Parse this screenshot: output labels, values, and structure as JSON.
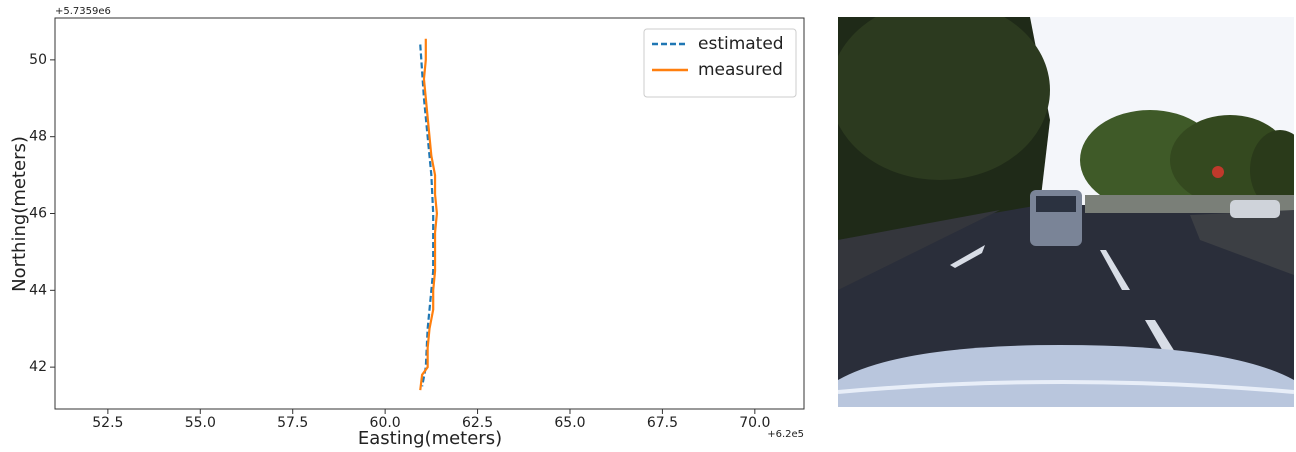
{
  "chart_data": {
    "type": "line",
    "xlabel": "Easting(meters)",
    "ylabel": "Northing(meters)",
    "x_offset": "+6.2e5",
    "y_offset": "+5.7359e6",
    "xlim": [
      51.07,
      71.33
    ],
    "ylim": [
      40.91,
      51.09
    ],
    "xticks": [
      52.5,
      {
        "value": 55,
        "label": "55.0"
      },
      57.5,
      {
        "value": 60,
        "label": "60.0"
      },
      62.5,
      {
        "value": 65,
        "label": "65.0"
      },
      67.5,
      {
        "value": 70,
        "label": "70.0"
      }
    ],
    "yticks": [
      42,
      44,
      46,
      48,
      50
    ],
    "legend": "upper right",
    "series": [
      {
        "name": "estimated",
        "color": "#1f77b4",
        "linestyle": "dashed",
        "x": [
          60.95,
          61.0,
          61.05,
          61.1,
          61.15,
          61.2,
          61.25,
          61.3,
          61.3,
          61.3,
          61.25,
          61.2,
          61.15,
          61.1,
          61.0
        ],
        "values": [
          50.4,
          49.7,
          49.0,
          48.5,
          48.0,
          47.5,
          47.0,
          46.0,
          45.0,
          44.5,
          44.0,
          43.5,
          43.0,
          42.0,
          41.5
        ]
      },
      {
        "name": "measured",
        "color": "#ff7f0e",
        "linestyle": "solid",
        "x": [
          61.1,
          61.1,
          61.05,
          61.1,
          61.15,
          61.2,
          61.25,
          61.35,
          61.35,
          61.4,
          61.35,
          61.35,
          61.35,
          61.3,
          61.3,
          61.2,
          61.15,
          61.15,
          61.0,
          60.95
        ],
        "values": [
          50.55,
          50.0,
          49.5,
          49.0,
          48.5,
          48.0,
          47.5,
          47.0,
          46.5,
          46.0,
          45.5,
          45.0,
          44.5,
          44.0,
          43.5,
          43.0,
          42.5,
          42.0,
          41.8,
          41.4
        ]
      }
    ]
  }
}
